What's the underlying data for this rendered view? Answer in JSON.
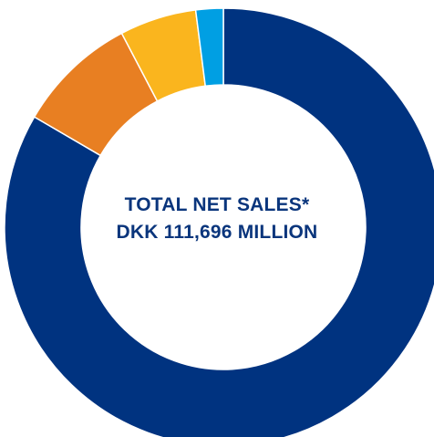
{
  "chart_data": {
    "type": "pie",
    "donut": true,
    "title": "",
    "center_label": {
      "line1": "TOTAL NET SALES*",
      "line2": "DKK 111,696 MILLION"
    },
    "slices": [
      {
        "value": 82.4,
        "color": "#003380"
      },
      {
        "value": 8.8,
        "color": "#e87f22"
      },
      {
        "value": 5.6,
        "color": "#fab51e"
      },
      {
        "value": 2.0,
        "color": "#009fe3"
      }
    ],
    "start_at": "12 o'clock",
    "direction": "clockwise",
    "text_color": "#0a357c"
  }
}
